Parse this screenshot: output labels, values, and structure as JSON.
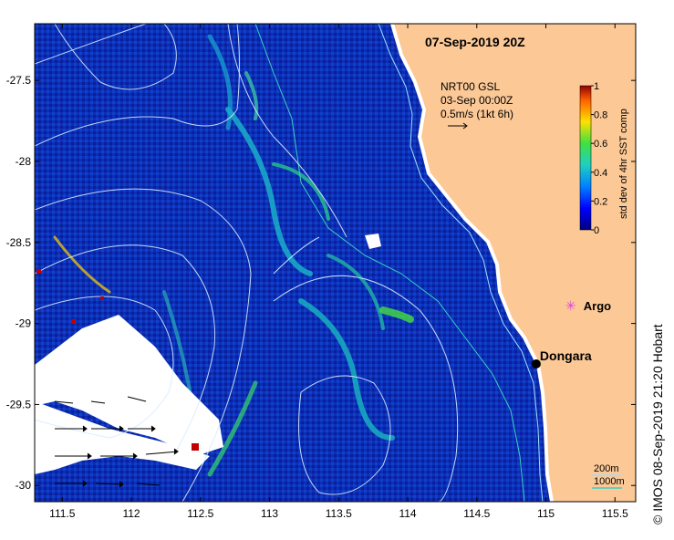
{
  "map": {
    "title": "07-Sep-2019 20Z",
    "product": {
      "line1": "NRT00 GSL",
      "line2": "03-Sep 00:00Z",
      "line3": "0.5m/s (1kt 6h)"
    },
    "extent": {
      "lon": [
        111.3,
        115.65
      ],
      "lat": [
        -30.1,
        -27.15
      ]
    },
    "lon_ticks": [
      {
        "value": 111.5,
        "label": "111.5"
      },
      {
        "value": 112,
        "label": "112"
      },
      {
        "value": 112.5,
        "label": "112.5"
      },
      {
        "value": 113,
        "label": "113"
      },
      {
        "value": 113.5,
        "label": "113.5"
      },
      {
        "value": 114,
        "label": "114"
      },
      {
        "value": 114.5,
        "label": "114.5"
      },
      {
        "value": 115,
        "label": "115"
      },
      {
        "value": 115.5,
        "label": "115.5"
      }
    ],
    "lat_ticks": [
      {
        "value": -27.5,
        "label": "-27.5"
      },
      {
        "value": -28,
        "label": "-28"
      },
      {
        "value": -28.5,
        "label": "-28.5"
      },
      {
        "value": -29,
        "label": "-29"
      },
      {
        "value": -29.5,
        "label": "-29.5"
      },
      {
        "value": -30,
        "label": "-30"
      }
    ],
    "colorbar": {
      "label": "std dev of 4hr SST comp",
      "ticks": [
        "0",
        "0.2",
        "0.4",
        "0.6",
        "0.8",
        "1"
      ],
      "range": [
        0,
        1
      ]
    },
    "places": [
      {
        "name": "Argo",
        "lon": 115.18,
        "lat": -28.89,
        "marker": "star",
        "color": "#e040e0"
      },
      {
        "name": "Dongara",
        "lon": 114.93,
        "lat": -29.25,
        "marker": "dot",
        "color": "#000000"
      }
    ],
    "legend": {
      "contour_200": "200m",
      "contour_1000": "1000m"
    },
    "colors": {
      "land": "#fbc896",
      "ocean_low": "#00008f",
      "ocean_mid": "#1466e0",
      "contour": "#cfe6ff",
      "bathy_200": "#a0e0ff",
      "bathy_1000": "#38d0c0"
    }
  },
  "credit": "© IMOS 08-Sep-2019 21:20 Hobart"
}
